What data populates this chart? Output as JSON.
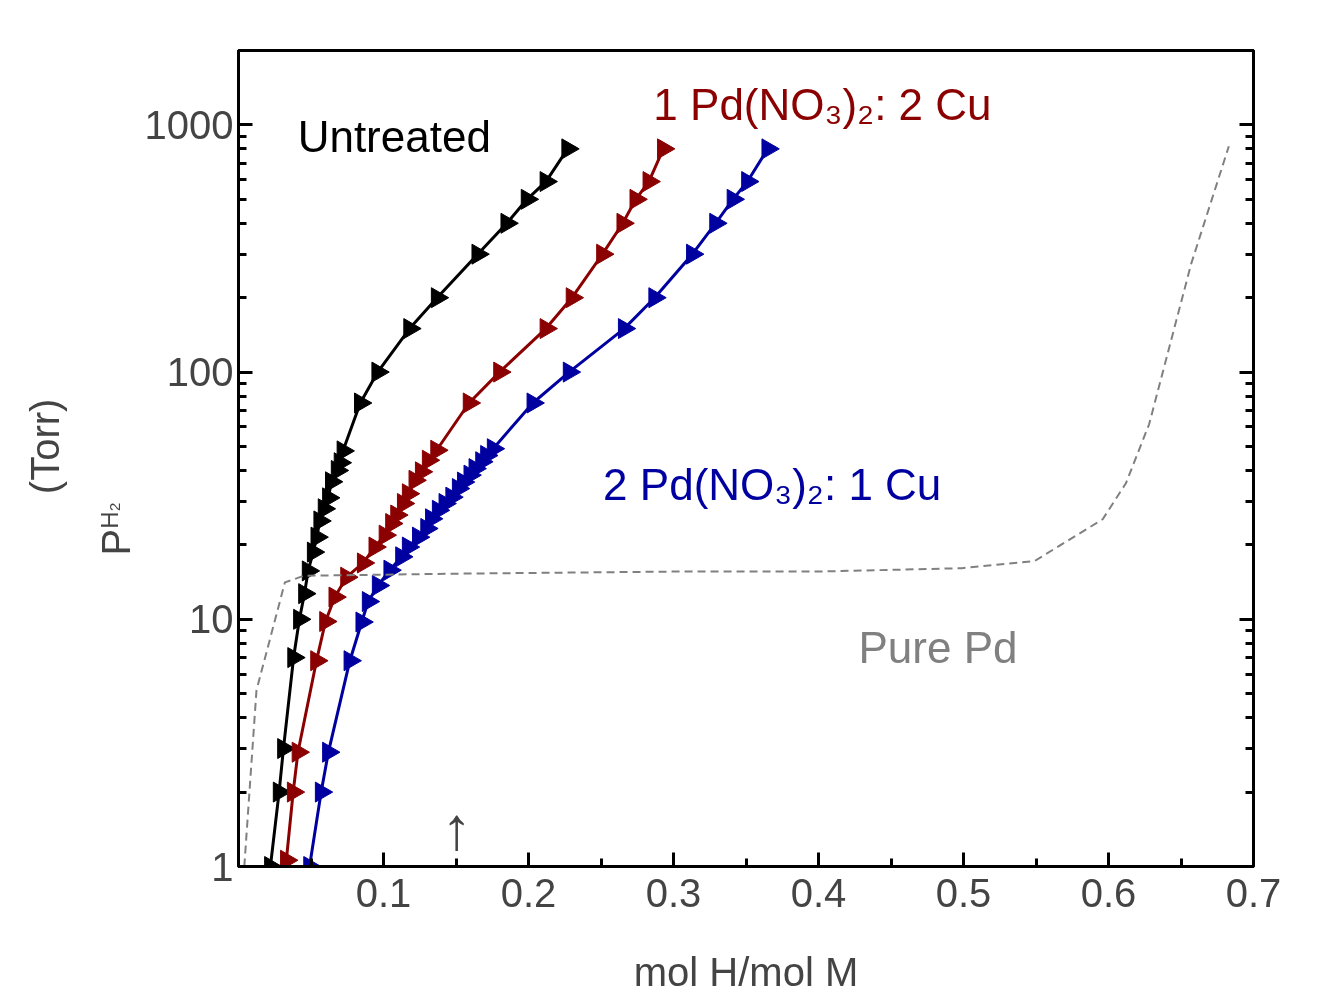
{
  "chart_data": {
    "type": "line",
    "xlabel": "mol H/mol M",
    "ylabel": "P$_{H₂}$ (Torr)",
    "log": "y",
    "grid": false,
    "legend": false,
    "xlim": [
      0,
      0.7
    ],
    "xticks": [
      0.1,
      0.2,
      0.3,
      0.4,
      0.5,
      0.6,
      0.7
    ],
    "ylim": [
      1,
      2000
    ],
    "yticks": [
      1,
      10,
      100,
      1000
    ],
    "annotations": [
      "↑"
    ],
    "series": [
      {
        "name": "Untreated",
        "color": "#000000",
        "marker": "triangle",
        "line_style": "solid",
        "x": [
          0.022,
          0.028,
          0.031,
          0.038,
          0.042,
          0.0455,
          0.048,
          0.0515,
          0.054,
          0.056,
          0.059,
          0.062,
          0.064,
          0.068,
          0.07,
          0.072,
          0.084,
          0.096,
          0.118,
          0.137,
          0.165,
          0.185,
          0.199,
          0.212,
          0.227
        ],
        "values": [
          1,
          2,
          3,
          7,
          10,
          12.7,
          15.7,
          18.7,
          21.5,
          25,
          28,
          31,
          36,
          40,
          43,
          48,
          75,
          100,
          150,
          200,
          300,
          400,
          500,
          590,
          800
        ]
      },
      {
        "name": "1 Pd(NO₃)₂: 2 Cu",
        "color": "#8b0000",
        "marker": "triangle",
        "line_style": "solid",
        "x": [
          0.033,
          0.0377,
          0.041,
          0.0538,
          0.06,
          0.0664,
          0.0745,
          0.086,
          0.094,
          0.101,
          0.1055,
          0.109,
          0.1136,
          0.117,
          0.1216,
          0.126,
          0.1308,
          0.1366,
          0.159,
          0.18,
          0.212,
          0.23,
          0.251,
          0.265,
          0.274,
          0.283,
          0.293
        ],
        "values": [
          1.06,
          2,
          2.9,
          6.8,
          9.8,
          12.3,
          14.8,
          16.9,
          19.6,
          21.9,
          24.4,
          26.4,
          29.4,
          32.2,
          36.5,
          39.5,
          44,
          48.3,
          75,
          100,
          150,
          200,
          300,
          400,
          500,
          590,
          800
        ]
      },
      {
        "name": "2 Pd(NO₃)₂: 1 Cu",
        "color": "#0000a0",
        "marker": "triangle",
        "line_style": "solid",
        "x": [
          0.049,
          0.057,
          0.062,
          0.0768,
          0.085,
          0.0894,
          0.0963,
          0.1043,
          0.1124,
          0.117,
          0.124,
          0.1297,
          0.133,
          0.1377,
          0.1423,
          0.147,
          0.1515,
          0.155,
          0.1595,
          0.163,
          0.1676,
          0.171,
          0.1756,
          0.203,
          0.228,
          0.266,
          0.287,
          0.313,
          0.329,
          0.341,
          0.351,
          0.365
        ],
        "values": [
          1,
          2,
          2.9,
          6.8,
          9.75,
          11.8,
          13.7,
          15.8,
          17.9,
          19.6,
          21.5,
          23.3,
          25.5,
          27.6,
          29.4,
          31.2,
          33.8,
          35.9,
          38.3,
          40.7,
          43.4,
          46,
          49,
          75,
          100,
          150,
          200,
          300,
          400,
          500,
          590,
          800
        ]
      },
      {
        "name": "Pure Pd",
        "color": "#808080",
        "marker": "none",
        "line_style": "dashed",
        "x": [
          0.004,
          0.0124,
          0.032,
          0.045,
          0.15,
          0.302,
          0.4,
          0.499,
          0.549,
          0.596,
          0.612,
          0.628,
          0.657,
          0.683
        ],
        "values": [
          1,
          5.16,
          14.1,
          15.0,
          15.3,
          15.6,
          15.6,
          16.1,
          17.2,
          25.4,
          35.5,
          61.5,
          274,
          820
        ]
      }
    ]
  }
}
